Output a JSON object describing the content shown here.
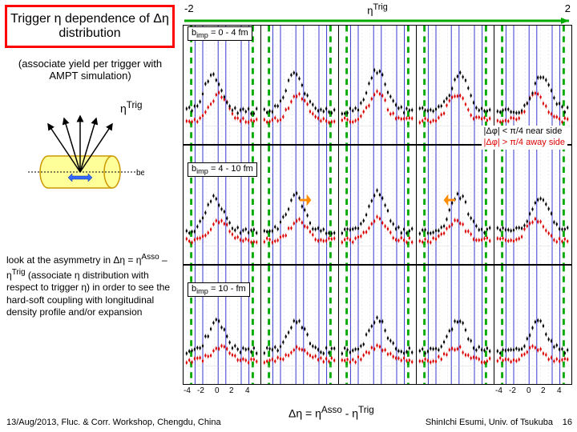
{
  "title": "Trigger η dependence of Δη distribution",
  "subtitle": "(associate yield per trigger with AMPT simulation)",
  "etaTrigLabel": "ηTrig",
  "paragraph": "look at the asymmetry in Δη = ηAsso – ηTrig (associate η distribution with respect to trigger η) in order to see the hard-soft coupling with longitudinal density profile and/or expansion",
  "footerLeft": "13/Aug/2013, Fluc. & Corr. Workshop, Chengdu, China",
  "footerRight": "ShinIchi Esumi, Univ. of Tsukuba",
  "pageNum": "16",
  "axisTop": {
    "left": "-2",
    "center": "ηTrig",
    "right": "2"
  },
  "rowLabels": [
    "bimp = 0 - 4 fm",
    "bimp = 4 - 10 fm",
    "bimp = 10 - fm"
  ],
  "legend": {
    "line1": "|Δφ| < π/4 near side",
    "line2": "|Δφ| > π/4 away side"
  },
  "xTicks": [
    "-4",
    "-2",
    "0",
    "2",
    "4"
  ],
  "bottomFormula": "Δη = ηAsso - ηTrig",
  "colors": {
    "near": "#000000",
    "away": "#dd0000",
    "green": "#00aa00",
    "blue": "#3030cc",
    "orange": "#ff8c00"
  },
  "detector": {
    "cylFill": "#ffff99",
    "cylStroke": "#cc9900",
    "arrowFill": "#3366ff"
  },
  "panelViewBox": {
    "xmin": -5,
    "xmax": 5,
    "ymin": 0,
    "ymax": 1
  },
  "greenLines": [
    -4,
    4
  ],
  "rows": [
    {
      "blueLines": [
        -3.5,
        -2.5,
        -0.5,
        0.5,
        2.5,
        3.5
      ],
      "panels": [
        {
          "shift": -1.2,
          "nearAmp": 0.3,
          "awayAmp": 0.22
        },
        {
          "shift": -0.6,
          "nearAmp": 0.32,
          "awayAmp": 0.22
        },
        {
          "shift": 0.0,
          "nearAmp": 0.34,
          "awayAmp": 0.23
        },
        {
          "shift": 0.6,
          "nearAmp": 0.32,
          "awayAmp": 0.22
        },
        {
          "shift": 1.2,
          "nearAmp": 0.3,
          "awayAmp": 0.22
        }
      ]
    },
    {
      "blueLines": [
        -3.5,
        -2.5,
        -0.5,
        0.5,
        2.5,
        3.5
      ],
      "panels": [
        {
          "shift": -1.0,
          "nearAmp": 0.28,
          "awayAmp": 0.17
        },
        {
          "shift": -0.5,
          "nearAmp": 0.3,
          "awayAmp": 0.17
        },
        {
          "shift": 0.0,
          "nearAmp": 0.32,
          "awayAmp": 0.18
        },
        {
          "shift": 0.5,
          "nearAmp": 0.3,
          "awayAmp": 0.17
        },
        {
          "shift": 1.0,
          "nearAmp": 0.28,
          "awayAmp": 0.17
        }
      ]
    },
    {
      "blueLines": [
        -3.5,
        -2.5,
        -0.5,
        0.5,
        2.5,
        3.5
      ],
      "panels": [
        {
          "shift": -0.7,
          "nearAmp": 0.24,
          "awayAmp": 0.11
        },
        {
          "shift": -0.35,
          "nearAmp": 0.26,
          "awayAmp": 0.11
        },
        {
          "shift": 0.0,
          "nearAmp": 0.28,
          "awayAmp": 0.12
        },
        {
          "shift": 0.35,
          "nearAmp": 0.26,
          "awayAmp": 0.11
        },
        {
          "shift": 0.7,
          "nearAmp": 0.24,
          "awayAmp": 0.11
        }
      ]
    }
  ]
}
